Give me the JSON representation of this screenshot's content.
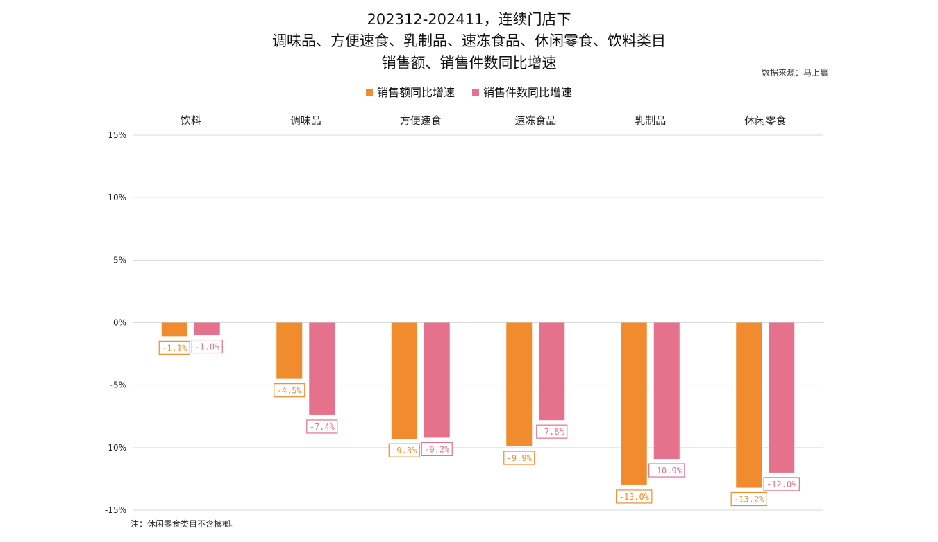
{
  "title": {
    "line1": "202312-202411，连续门店下",
    "line2": "调味品、方便速食、乳制品、速冻食品、休闲零食、饮料类目",
    "line3": "销售额、销售件数同比增速"
  },
  "source": "数据来源：马上赢",
  "footnote": "注：休闲零食类目不含槟榔。",
  "colors": {
    "sales": "#F08C2E",
    "units": "#E5718C",
    "grid": "#D9D9D9",
    "text": "#222222"
  },
  "chart_data": {
    "type": "bar",
    "title": "202312-202411，连续门店下 调味品、方便速食、乳制品、速冻食品、休闲零食、饮料类目 销售额、销售件数同比增速",
    "categories": [
      "饮料",
      "调味品",
      "方便速食",
      "速冻食品",
      "乳制品",
      "休闲零食"
    ],
    "series": [
      {
        "name": "销售额同比增速",
        "values": [
          -1.1,
          -4.5,
          -9.3,
          -9.9,
          -13.0,
          -13.2
        ],
        "labels": [
          "-1.1%",
          "-4.5%",
          "-9.3%",
          "-9.9%",
          "-13.0%",
          "-13.2%"
        ]
      },
      {
        "name": "销售件数同比增速",
        "values": [
          -1.0,
          -7.4,
          -9.2,
          -7.8,
          -10.9,
          -12.0
        ],
        "labels": [
          "-1.0%",
          "-7.4%",
          "-9.2%",
          "-7.8%",
          "-10.9%",
          "-12.0%"
        ]
      }
    ],
    "yticks": [
      15,
      10,
      5,
      0,
      -5,
      -10,
      -15
    ],
    "ytick_labels": [
      "15%",
      "10%",
      "5%",
      "0%",
      "-5%",
      "-10%",
      "-15%"
    ],
    "ylim": [
      -15,
      15
    ],
    "xlabel": "",
    "ylabel": "",
    "grid": true,
    "category_labels_position": "top",
    "legend_position": "top-center"
  }
}
